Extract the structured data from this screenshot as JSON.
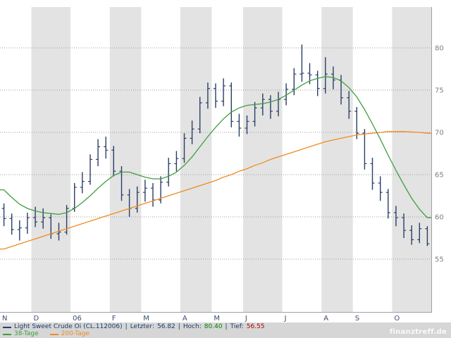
{
  "colors": {
    "background": "#ffffff",
    "stripe": "#e3e3e3",
    "grid": "#9c9c9c",
    "axis": "#a0a0a0",
    "price_bars": "#2a3f66",
    "ma38": "#3f9e3f",
    "ma200": "#f08b22",
    "text_navy": "#1a3a6b",
    "x_label": "#3d4e6e",
    "y_label": "#7f7f7f",
    "hoch_green": "#008000",
    "tief_red": "#b00000",
    "legend_bg": "#d6d6d6",
    "watermark_text": "#fafafa"
  },
  "legend": {
    "instrument": "Light Sweet Crude Oi (CL.112006)",
    "sep": "|",
    "letzter_label": "Letzter:",
    "letzter": "56.82",
    "hoch_label": "Hoch:",
    "hoch": "80.40",
    "tief_label": "Tief:",
    "tief": "56.55",
    "ma38_label": "38-Tage",
    "ma200_label": "200-Tage"
  },
  "watermark": "finanztreff.de",
  "chart_data": {
    "type": "ohlc-bar",
    "title": "Light Sweet Crude Oi (CL.112006)",
    "period": "weekly",
    "x_months": [
      "N",
      "D",
      "06",
      "F",
      "M",
      "A",
      "M",
      "J",
      "J",
      "A",
      "S",
      "O"
    ],
    "month_week_counts": [
      4,
      5,
      5,
      4,
      5,
      4,
      4,
      5,
      5,
      4,
      5,
      5
    ],
    "y_ticks": [
      80,
      75,
      70,
      65,
      60,
      55
    ],
    "ylim": [
      55,
      80
    ],
    "y_axis_side": "right",
    "grid_style": "dotted",
    "legend_position": "bottom",
    "stats": {
      "letzter": 56.82,
      "hoch": 80.4,
      "tief": 56.55
    },
    "bars_ohlc": [
      [
        61.0,
        61.6,
        58.9,
        59.8
      ],
      [
        59.8,
        60.4,
        57.9,
        58.5
      ],
      [
        58.5,
        59.6,
        57.2,
        58.7
      ],
      [
        58.7,
        60.5,
        58.0,
        59.9
      ],
      [
        59.9,
        61.2,
        58.8,
        59.4
      ],
      [
        59.4,
        61.0,
        58.6,
        59.9
      ],
      [
        59.9,
        60.3,
        57.4,
        58.0
      ],
      [
        58.0,
        59.3,
        57.2,
        58.2
      ],
      [
        58.2,
        61.4,
        57.9,
        61.0
      ],
      [
        61.0,
        64.0,
        60.6,
        63.5
      ],
      [
        63.5,
        65.3,
        62.8,
        64.2
      ],
      [
        64.2,
        67.4,
        63.8,
        66.8
      ],
      [
        66.8,
        69.2,
        66.0,
        68.3
      ],
      [
        68.3,
        69.5,
        66.9,
        67.9
      ],
      [
        67.9,
        68.4,
        64.8,
        65.4
      ],
      [
        65.4,
        66.0,
        61.9,
        62.6
      ],
      [
        62.6,
        63.3,
        60.0,
        61.0
      ],
      [
        61.0,
        63.6,
        60.5,
        62.9
      ],
      [
        62.9,
        64.4,
        61.8,
        63.4
      ],
      [
        63.4,
        64.0,
        61.2,
        62.0
      ],
      [
        62.0,
        64.8,
        61.6,
        64.1
      ],
      [
        64.1,
        67.0,
        63.6,
        66.3
      ],
      [
        66.3,
        67.8,
        65.4,
        66.9
      ],
      [
        66.9,
        69.9,
        66.4,
        69.3
      ],
      [
        69.3,
        71.4,
        68.6,
        70.4
      ],
      [
        70.4,
        74.2,
        69.9,
        73.5
      ],
      [
        73.5,
        75.9,
        72.8,
        75.2
      ],
      [
        75.2,
        75.8,
        72.9,
        73.7
      ],
      [
        73.7,
        76.4,
        73.1,
        75.5
      ],
      [
        75.5,
        75.9,
        70.6,
        71.3
      ],
      [
        71.3,
        72.2,
        69.5,
        70.5
      ],
      [
        70.5,
        72.0,
        69.8,
        71.3
      ],
      [
        71.3,
        73.6,
        70.7,
        72.9
      ],
      [
        72.9,
        74.6,
        72.0,
        73.9
      ],
      [
        73.9,
        74.4,
        71.6,
        72.5
      ],
      [
        72.5,
        74.8,
        71.9,
        73.9
      ],
      [
        73.9,
        75.8,
        73.2,
        75.1
      ],
      [
        75.1,
        77.6,
        74.4,
        76.9
      ],
      [
        76.9,
        80.4,
        76.0,
        77.0
      ],
      [
        77.0,
        78.2,
        75.7,
        76.8
      ],
      [
        76.8,
        77.3,
        74.3,
        75.2
      ],
      [
        75.2,
        78.9,
        74.6,
        76.9
      ],
      [
        76.9,
        77.8,
        75.1,
        76.2
      ],
      [
        76.2,
        76.8,
        73.3,
        74.1
      ],
      [
        74.1,
        74.9,
        71.6,
        72.5
      ],
      [
        72.5,
        73.0,
        69.2,
        69.9
      ],
      [
        69.9,
        70.4,
        65.6,
        66.3
      ],
      [
        66.3,
        67.0,
        63.2,
        64.0
      ],
      [
        64.0,
        64.8,
        61.9,
        62.9
      ],
      [
        62.9,
        63.3,
        59.8,
        60.5
      ],
      [
        60.5,
        61.3,
        58.9,
        59.9
      ],
      [
        59.9,
        60.4,
        57.5,
        58.4
      ],
      [
        58.4,
        59.0,
        56.7,
        57.3
      ],
      [
        57.3,
        59.3,
        56.9,
        58.6
      ],
      [
        58.6,
        58.9,
        56.55,
        56.82
      ]
    ],
    "series": [
      {
        "name": "38-Tage",
        "color_key": "ma38",
        "values": [
          63.2,
          62.3,
          61.5,
          61.0,
          60.7,
          60.5,
          60.4,
          60.3,
          60.5,
          61.0,
          61.7,
          62.5,
          63.4,
          64.2,
          64.9,
          65.3,
          65.3,
          65.0,
          64.7,
          64.5,
          64.5,
          64.8,
          65.3,
          66.1,
          67.1,
          68.3,
          69.5,
          70.6,
          71.6,
          72.4,
          72.9,
          73.2,
          73.3,
          73.4,
          73.6,
          73.9,
          74.4,
          75.0,
          75.6,
          76.1,
          76.4,
          76.6,
          76.5,
          76.1,
          75.3,
          74.2,
          72.7,
          71.0,
          69.2,
          67.3,
          65.5,
          63.8,
          62.2,
          60.9,
          59.9
        ]
      },
      {
        "name": "200-Tage",
        "color_key": "ma200",
        "values": [
          56.2,
          56.5,
          56.8,
          57.1,
          57.4,
          57.7,
          58.0,
          58.3,
          58.6,
          58.9,
          59.2,
          59.5,
          59.8,
          60.1,
          60.4,
          60.7,
          61.0,
          61.3,
          61.6,
          61.9,
          62.2,
          62.5,
          62.8,
          63.1,
          63.4,
          63.7,
          64.0,
          64.3,
          64.7,
          65.0,
          65.4,
          65.7,
          66.1,
          66.4,
          66.8,
          67.1,
          67.4,
          67.7,
          68.0,
          68.3,
          68.6,
          68.9,
          69.1,
          69.3,
          69.5,
          69.7,
          69.8,
          69.9,
          70.0,
          70.1,
          70.1,
          70.1,
          70.05,
          70.0,
          69.9
        ]
      }
    ]
  }
}
